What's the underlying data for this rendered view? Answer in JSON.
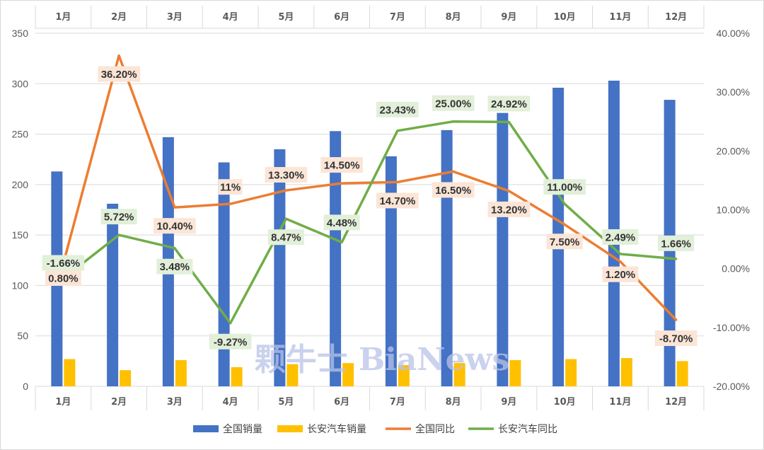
{
  "chart_data": {
    "type": "bar+line",
    "categories": [
      "1月",
      "2月",
      "3月",
      "4月",
      "5月",
      "6月",
      "7月",
      "8月",
      "9月",
      "10月",
      "11月",
      "12月"
    ],
    "series": [
      {
        "name": "全国销量",
        "kind": "bar",
        "axis": "left",
        "color": "#4472C4",
        "values": [
          213,
          181,
          247,
          222,
          235,
          253,
          228,
          254,
          271,
          296,
          303,
          284
        ]
      },
      {
        "name": "长安汽车销量",
        "kind": "bar",
        "axis": "left",
        "color": "#FFC000",
        "values": [
          27,
          16,
          26,
          19,
          22,
          23,
          21,
          23,
          26,
          27,
          28,
          25
        ]
      },
      {
        "name": "全国同比",
        "kind": "line",
        "axis": "right",
        "color": "#ED7D31",
        "values": [
          0.8,
          36.2,
          10.4,
          11.0,
          13.3,
          14.5,
          14.7,
          16.5,
          13.2,
          7.5,
          1.2,
          -8.7
        ],
        "labels": [
          "0.80%",
          "36.20%",
          "10.40%",
          "11%",
          "13.30%",
          "14.50%",
          "14.70%",
          "16.50%",
          "13.20%",
          "7.50%",
          "1.20%",
          "-8.70%"
        ]
      },
      {
        "name": "长安汽车同比",
        "kind": "line",
        "axis": "right",
        "color": "#70AD47",
        "values": [
          -1.66,
          5.72,
          3.48,
          -9.27,
          8.47,
          4.48,
          23.43,
          25.0,
          24.92,
          11.0,
          2.49,
          1.66
        ],
        "labels": [
          "-1.66%",
          "5.72%",
          "3.48%",
          "-9.27%",
          "8.47%",
          "4.48%",
          "23.43%",
          "25.00%",
          "24.92%",
          "11.00%",
          "2.49%",
          "1.66%"
        ]
      }
    ],
    "y_left": {
      "min": 0,
      "max": 350,
      "step": 50,
      "ticks": [
        "0",
        "50",
        "100",
        "150",
        "200",
        "250",
        "300",
        "350"
      ]
    },
    "y_right": {
      "min": -20,
      "max": 40,
      "step": 10,
      "ticks": [
        "-20.00%",
        "-10.00%",
        "0.00%",
        "10.00%",
        "20.00%",
        "30.00%",
        "40.00%"
      ]
    },
    "grid": true,
    "legend_position": "bottom",
    "watermark": "颗牛士 BiaNews"
  }
}
